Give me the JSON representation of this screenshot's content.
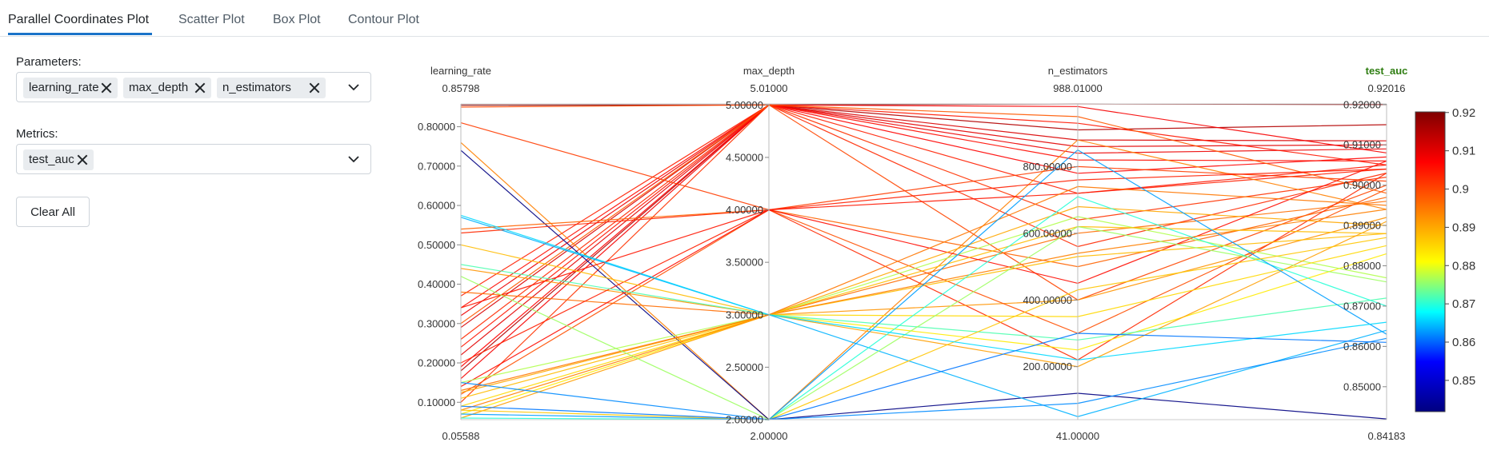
{
  "tabs": [
    {
      "label": "Parallel Coordinates Plot",
      "active": true
    },
    {
      "label": "Scatter Plot",
      "active": false
    },
    {
      "label": "Box Plot",
      "active": false
    },
    {
      "label": "Contour Plot",
      "active": false
    }
  ],
  "controls": {
    "parameters_label": "Parameters:",
    "parameters": [
      "learning_rate",
      "max_depth",
      "n_estimators"
    ],
    "metrics_label": "Metrics:",
    "metrics": [
      "test_auc"
    ],
    "clear_label": "Clear All"
  },
  "chart_data": {
    "type": "parallel_coordinates",
    "axes": [
      {
        "name": "learning_rate",
        "min_label": "0.05588",
        "max_label": "0.85798",
        "min": 0.05588,
        "max": 0.85798,
        "ticks": [
          0.1,
          0.2,
          0.3,
          0.4,
          0.5,
          0.6,
          0.7,
          0.8
        ],
        "tick_labels": [
          "0.10000",
          "0.20000",
          "0.30000",
          "0.40000",
          "0.50000",
          "0.60000",
          "0.70000",
          "0.80000"
        ]
      },
      {
        "name": "max_depth",
        "min_label": "2.00000",
        "max_label": "5.01000",
        "min": 2.0,
        "max": 5.01,
        "ticks": [
          2.0,
          2.5,
          3.0,
          3.5,
          4.0,
          4.5,
          5.0
        ],
        "tick_labels": [
          "2.00000",
          "2.50000",
          "3.00000",
          "3.50000",
          "4.00000",
          "4.50000",
          "5.00000"
        ]
      },
      {
        "name": "n_estimators",
        "min_label": "41.00000",
        "max_label": "988.01000",
        "min": 41.0,
        "max": 988.01,
        "ticks": [
          200,
          400,
          600,
          800
        ],
        "tick_labels": [
          "200.00000",
          "400.00000",
          "600.00000",
          "800.00000"
        ]
      },
      {
        "name": "test_auc",
        "min_label": "0.84183",
        "max_label": "0.92016",
        "min": 0.84183,
        "max": 0.92016,
        "highlight": true,
        "ticks": [
          0.85,
          0.86,
          0.87,
          0.88,
          0.89,
          0.9,
          0.91,
          0.92
        ],
        "tick_labels": [
          "0.85000",
          "0.86000",
          "0.87000",
          "0.88000",
          "0.89000",
          "0.90000",
          "0.91000",
          "0.92000"
        ]
      }
    ],
    "lines": [
      [
        0.855,
        5.0,
        988.0,
        0.92
      ],
      [
        0.18,
        5.0,
        910.0,
        0.915
      ],
      [
        0.29,
        5.0,
        880.0,
        0.911
      ],
      [
        0.22,
        5.0,
        860.0,
        0.91
      ],
      [
        0.32,
        5.0,
        840.0,
        0.909
      ],
      [
        0.16,
        5.0,
        980.0,
        0.908
      ],
      [
        0.19,
        5.0,
        780.0,
        0.907
      ],
      [
        0.34,
        5.0,
        820.0,
        0.906
      ],
      [
        0.37,
        5.0,
        720.0,
        0.904
      ],
      [
        0.24,
        5.0,
        930.0,
        0.905
      ],
      [
        0.1,
        5.0,
        640.0,
        0.902
      ],
      [
        0.26,
        5.0,
        560.0,
        0.903
      ],
      [
        0.85,
        5.0,
        400.0,
        0.9
      ],
      [
        0.3,
        5.0,
        950.0,
        0.898
      ],
      [
        0.76,
        2.0,
        880.0,
        0.894
      ],
      [
        0.74,
        2.0,
        120.0,
        0.842
      ],
      [
        0.57,
        3.0,
        50.0,
        0.864
      ],
      [
        0.81,
        4.0,
        800.0,
        0.901
      ],
      [
        0.54,
        4.0,
        500.0,
        0.897
      ],
      [
        0.53,
        4.0,
        220.0,
        0.903
      ],
      [
        0.38,
        3.0,
        600.0,
        0.896
      ],
      [
        0.44,
        3.0,
        400.0,
        0.892
      ],
      [
        0.12,
        4.0,
        300.0,
        0.899
      ],
      [
        0.14,
        4.0,
        450.0,
        0.906
      ],
      [
        0.2,
        4.0,
        760.0,
        0.904
      ],
      [
        0.34,
        4.0,
        720.0,
        0.905
      ],
      [
        0.07,
        3.0,
        250.0,
        0.883
      ],
      [
        0.11,
        3.0,
        530.0,
        0.888
      ],
      [
        0.15,
        3.0,
        650.0,
        0.877
      ],
      [
        0.09,
        3.0,
        350.0,
        0.885
      ],
      [
        0.125,
        3.0,
        680.0,
        0.89
      ],
      [
        0.08,
        3.0,
        540.0,
        0.894
      ],
      [
        0.06,
        3.0,
        200.0,
        0.891
      ],
      [
        0.5,
        3.0,
        620.0,
        0.888
      ],
      [
        0.13,
        3.0,
        740.0,
        0.895
      ],
      [
        0.45,
        3.0,
        280.0,
        0.872
      ],
      [
        0.06,
        2.0,
        710.0,
        0.87
      ],
      [
        0.15,
        2.0,
        90.0,
        0.862
      ],
      [
        0.42,
        2.0,
        620.0,
        0.876
      ],
      [
        0.07,
        2.0,
        850.0,
        0.863
      ],
      [
        0.08,
        2.0,
        430.0,
        0.887
      ],
      [
        0.575,
        3.0,
        220.0,
        0.866
      ],
      [
        0.09,
        2.0,
        300.0,
        0.861
      ]
    ],
    "colorbar": {
      "min": 0.84183,
      "max": 0.92016,
      "ticks": [
        0.85,
        0.86,
        0.87,
        0.88,
        0.89,
        0.9,
        0.91,
        0.92
      ],
      "tick_labels": [
        "0.85",
        "0.86",
        "0.87",
        "0.88",
        "0.89",
        "0.9",
        "0.91",
        "0.92"
      ],
      "colorscale": [
        "#000080",
        "#0000ff",
        "#00ffff",
        "#ffff00",
        "#ff8000",
        "#ff0000",
        "#800000"
      ]
    }
  }
}
